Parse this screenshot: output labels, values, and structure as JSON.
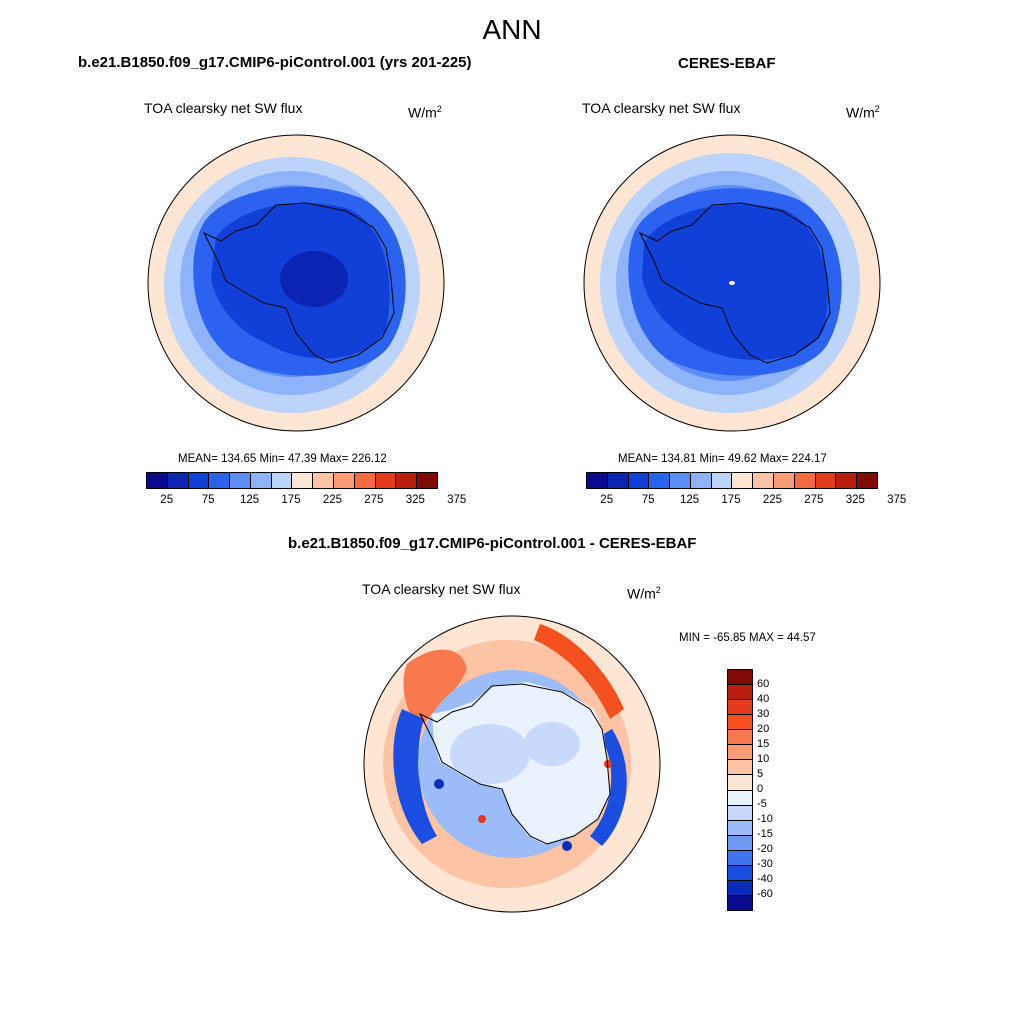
{
  "season": "ANN",
  "panels": [
    {
      "title": "b.e21.B1850.f09_g17.CMIP6-piControl.001 (yrs 201-225)",
      "variable": "TOA clearsky net SW flux",
      "units": "W/m",
      "units_sup": "2",
      "stats": "MEAN= 134.65  Min=  47.39  Max= 226.12",
      "colorbar": {
        "colors": [
          "#0a0a8c",
          "#0b24b4",
          "#1040d8",
          "#2b62ef",
          "#5c8ef5",
          "#8fb3f8",
          "#bcd3fa",
          "#fde6d4",
          "#fcc4a6",
          "#f99c78",
          "#f56a43",
          "#e23a1a",
          "#b81e0e",
          "#800a04"
        ],
        "tick_labels": [
          "25",
          "75",
          "125",
          "175",
          "225",
          "275",
          "325",
          "375"
        ]
      }
    },
    {
      "title": "CERES-EBAF",
      "variable": "TOA clearsky net SW flux",
      "units": "W/m",
      "units_sup": "2",
      "stats": "MEAN= 134.81  Min=  49.62  Max= 224.17",
      "colorbar": {
        "colors": [
          "#0a0a8c",
          "#0b24b4",
          "#1040d8",
          "#2b62ef",
          "#5c8ef5",
          "#8fb3f8",
          "#bcd3fa",
          "#fde6d4",
          "#fcc4a6",
          "#f99c78",
          "#f56a43",
          "#e23a1a",
          "#b81e0e",
          "#800a04"
        ],
        "tick_labels": [
          "25",
          "75",
          "125",
          "175",
          "225",
          "275",
          "325",
          "375"
        ]
      }
    }
  ],
  "diff": {
    "title": "b.e21.B1850.f09_g17.CMIP6-piControl.001 - CERES-EBAF",
    "variable": "TOA clearsky net SW flux",
    "units": "W/m",
    "units_sup": "2",
    "stats": "MIN = -65.85 MAX =  44.57",
    "colorbar": {
      "colors": [
        "#800a04",
        "#b81e0e",
        "#e23a1a",
        "#f4501f",
        "#f7794d",
        "#fa9d77",
        "#fcc3a4",
        "#fde6d4",
        "#eaf2fd",
        "#c7dafb",
        "#9cbcf8",
        "#6e9af4",
        "#4073ee",
        "#1a4de0",
        "#0b2cb8",
        "#0a0a8c"
      ],
      "tick_labels": [
        "60",
        "40",
        "30",
        "20",
        "15",
        "10",
        "5",
        "0",
        "-5",
        "-10",
        "-15",
        "-20",
        "-30",
        "-40",
        "-60"
      ]
    }
  }
}
